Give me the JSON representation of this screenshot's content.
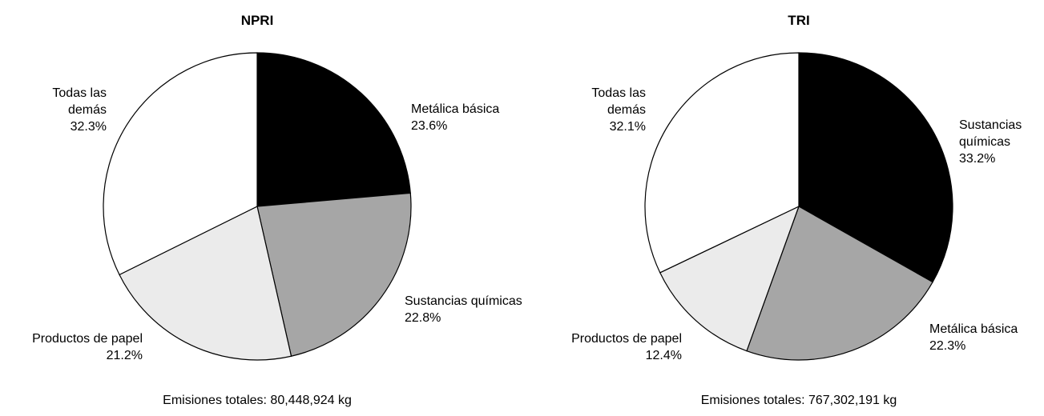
{
  "chart_data": [
    {
      "type": "pie",
      "title": "NPRI",
      "categories": [
        "Metálica básica",
        "Sustancias químicas",
        "Productos de papel",
        "Todas las demás"
      ],
      "values": [
        23.6,
        22.8,
        21.2,
        32.3
      ],
      "value_labels": [
        "23.6%",
        "22.8%",
        "21.2%",
        "32.3%"
      ],
      "colors": [
        "#000000",
        "#a6a6a6",
        "#ebebeb",
        "#ffffff"
      ],
      "note": "Emisiones totales: 80,448,924 kg"
    },
    {
      "type": "pie",
      "title": "TRI",
      "categories": [
        "Sustancias químicas",
        "Metálica básica",
        "Productos de papel",
        "Todas las demás"
      ],
      "values": [
        33.2,
        22.3,
        12.4,
        32.1
      ],
      "value_labels": [
        "33.2%",
        "22.3%",
        "12.4%",
        "32.1%"
      ],
      "colors": [
        "#000000",
        "#a6a6a6",
        "#ebebeb",
        "#ffffff"
      ],
      "note": "Emisiones totales: 767,302,191 kg"
    }
  ]
}
